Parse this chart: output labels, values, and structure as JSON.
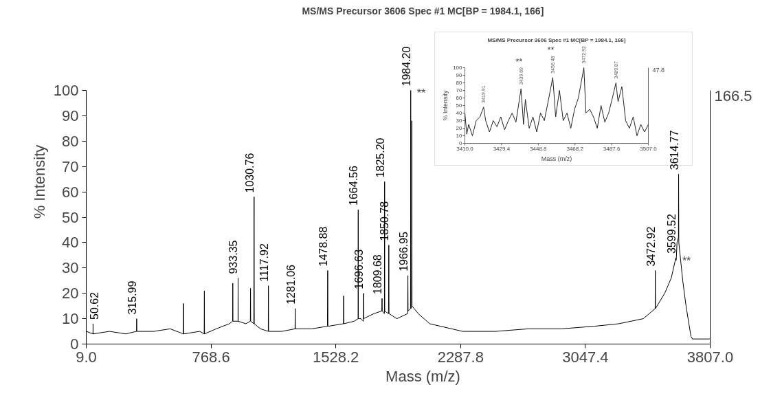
{
  "chart_data": [
    {
      "type": "line",
      "title": "MS/MS Precursor 3606 Spec #1 MC[BP = 1984.1, 166]",
      "xlabel": "Mass (m/z)",
      "ylabel": "% Intensity",
      "x": [
        9,
        50,
        50.62,
        51,
        150,
        250,
        315,
        315.99,
        317,
        420,
        520,
        600,
        601,
        602,
        700,
        727,
        728,
        729,
        800,
        880,
        900,
        901,
        902,
        933,
        933.35,
        934,
        980,
        1008,
        1009,
        1010,
        1029,
        1030.76,
        1032,
        1070,
        1117,
        1117.92,
        1119,
        1200,
        1280,
        1281.06,
        1282,
        1380,
        1477,
        1478.88,
        1480,
        1575,
        1576,
        1577,
        1640,
        1664,
        1664.56,
        1665,
        1680,
        1696,
        1696.63,
        1697,
        1760,
        1808,
        1809.68,
        1811,
        1824,
        1825.2,
        1826,
        1849,
        1850.78,
        1852,
        1900,
        1965,
        1966.95,
        1968,
        1983,
        1984.2,
        1985,
        1990,
        1991,
        1992,
        2030,
        2100,
        2300,
        2500,
        2700,
        2900,
        3100,
        3250,
        3400,
        3472,
        3472.92,
        3474,
        3530,
        3570,
        3598,
        3599.52,
        3601,
        3605,
        3614,
        3614.77,
        3616,
        3640,
        3660,
        3690,
        3700,
        3800,
        3807
      ],
      "series": [
        {
          "color": "#000000",
          "values": [
            5,
            4,
            8,
            4,
            5,
            4,
            5,
            10,
            5,
            5,
            6,
            4,
            16,
            4,
            5,
            4,
            21,
            4,
            6,
            8,
            9,
            24,
            9,
            9,
            26,
            9,
            8,
            9,
            22,
            9,
            8,
            58,
            8,
            6,
            5,
            23,
            5,
            5,
            6,
            14,
            6,
            6,
            7,
            29,
            7,
            8,
            19,
            8,
            9,
            10,
            53,
            10,
            10,
            9,
            20,
            10,
            12,
            13,
            18,
            13,
            12,
            64,
            13,
            12,
            39,
            12,
            10,
            12,
            27,
            13,
            14,
            100,
            14,
            15,
            88,
            15,
            12,
            8,
            5,
            5,
            6,
            6,
            7,
            8,
            10,
            14,
            29,
            14,
            20,
            26,
            34,
            33,
            34,
            40,
            42,
            67,
            40,
            25,
            15,
            3,
            2,
            2,
            2
          ]
        }
      ],
      "xlim": [
        9.0,
        3807.0
      ],
      "xticks": [
        {
          "value": 9.0,
          "label": "9.0"
        },
        {
          "value": 768.6,
          "label": "768.6"
        },
        {
          "value": 1528.2,
          "label": "1528.2"
        },
        {
          "value": 2287.8,
          "label": "2287.8"
        },
        {
          "value": 3047.4,
          "label": "3047.4"
        },
        {
          "value": 3807.0,
          "label": "3807.0"
        }
      ],
      "ylim": [
        0,
        100
      ],
      "yticks": [
        0,
        10,
        20,
        30,
        40,
        50,
        60,
        70,
        80,
        90,
        100
      ],
      "grid": false,
      "annotations": [
        {
          "text": "50.62",
          "x": 50.62,
          "y": 8
        },
        {
          "text": "315.99",
          "x": 315.99,
          "y": 10
        },
        {
          "text": "933.35",
          "x": 933.35,
          "y": 26
        },
        {
          "text": "1030.76",
          "x": 1030.76,
          "y": 58
        },
        {
          "text": "1117.92",
          "x": 1117.92,
          "y": 23
        },
        {
          "text": "1281.06",
          "x": 1281.06,
          "y": 14
        },
        {
          "text": "1478.88",
          "x": 1478.88,
          "y": 29
        },
        {
          "text": "1664.56",
          "x": 1664.56,
          "y": 53
        },
        {
          "text": "1696.63",
          "x": 1696.63,
          "y": 20
        },
        {
          "text": "1809.68",
          "x": 1809.68,
          "y": 18
        },
        {
          "text": "1825.20",
          "x": 1825.2,
          "y": 64
        },
        {
          "text": "1850.78",
          "x": 1850.78,
          "y": 39
        },
        {
          "text": "1966.95",
          "x": 1966.95,
          "y": 27
        },
        {
          "text": "1984.20",
          "x": 1984.2,
          "y": 100
        },
        {
          "text": "**",
          "x": 1984.2,
          "y": 100
        },
        {
          "text": "3472.92",
          "x": 3472.92,
          "y": 29
        },
        {
          "text": "3599.52",
          "x": 3599.52,
          "y": 34
        },
        {
          "text": "**",
          "x": 3599.52,
          "y": 34
        },
        {
          "text": "3614.77",
          "x": 3614.77,
          "y": 67
        },
        "166.5"
      ]
    },
    {
      "type": "line",
      "title": "MS/MS Precursor 3606 Spec #1 MC[BP = 1984.1, 166]",
      "xlabel": "Mass (m/z)",
      "ylabel": "% Intensity",
      "x": [
        3410,
        3411,
        3412,
        3414,
        3416,
        3418,
        3419.91,
        3421,
        3423,
        3425,
        3427,
        3429,
        3431,
        3433,
        3435,
        3437,
        3439.69,
        3441,
        3442,
        3444,
        3446,
        3448,
        3450,
        3452,
        3454,
        3456.48,
        3458,
        3460,
        3462,
        3464,
        3466,
        3468,
        3470,
        3472.92,
        3474,
        3476,
        3478,
        3480,
        3482,
        3484,
        3486,
        3488,
        3489.87,
        3491,
        3493,
        3495,
        3497,
        3499,
        3501,
        3503,
        3505,
        3507
      ],
      "series": [
        {
          "color": "#222222",
          "values": [
            40,
            12,
            25,
            10,
            30,
            35,
            48,
            30,
            15,
            30,
            22,
            35,
            18,
            30,
            40,
            28,
            72,
            25,
            58,
            20,
            35,
            15,
            40,
            30,
            55,
            87,
            35,
            70,
            30,
            40,
            20,
            45,
            60,
            100,
            40,
            45,
            35,
            20,
            50,
            28,
            40,
            60,
            80,
            55,
            75,
            30,
            20,
            35,
            10,
            25,
            15,
            25
          ]
        }
      ],
      "xlim": [
        3410.0,
        3507.0
      ],
      "xticks": [
        {
          "value": 3410.0,
          "label": "3410.0"
        },
        {
          "value": 3429.4,
          "label": "3429.4"
        },
        {
          "value": 3448.8,
          "label": "3448.8"
        },
        {
          "value": 3468.2,
          "label": "3468.2"
        },
        {
          "value": 3487.6,
          "label": "3487.6"
        },
        {
          "value": 3507.0,
          "label": "3507.0"
        }
      ],
      "ylim": [
        0,
        100
      ],
      "yticks": [
        0,
        10,
        20,
        30,
        40,
        50,
        60,
        70,
        80,
        90,
        100
      ],
      "annotations": [
        {
          "text": "3419.91",
          "x": 3419.91,
          "y": 48
        },
        {
          "text": "3439.69",
          "x": 3439.69,
          "y": 72
        },
        {
          "text": "**",
          "x": 3439.69,
          "y": 72
        },
        {
          "text": "3456.48",
          "x": 3456.48,
          "y": 87
        },
        {
          "text": "**",
          "x": 3456.48,
          "y": 87
        },
        {
          "text": "3472.92",
          "x": 3472.92,
          "y": 100
        },
        {
          "text": "3489.87",
          "x": 3489.87,
          "y": 80
        },
        "47.8"
      ]
    }
  ]
}
